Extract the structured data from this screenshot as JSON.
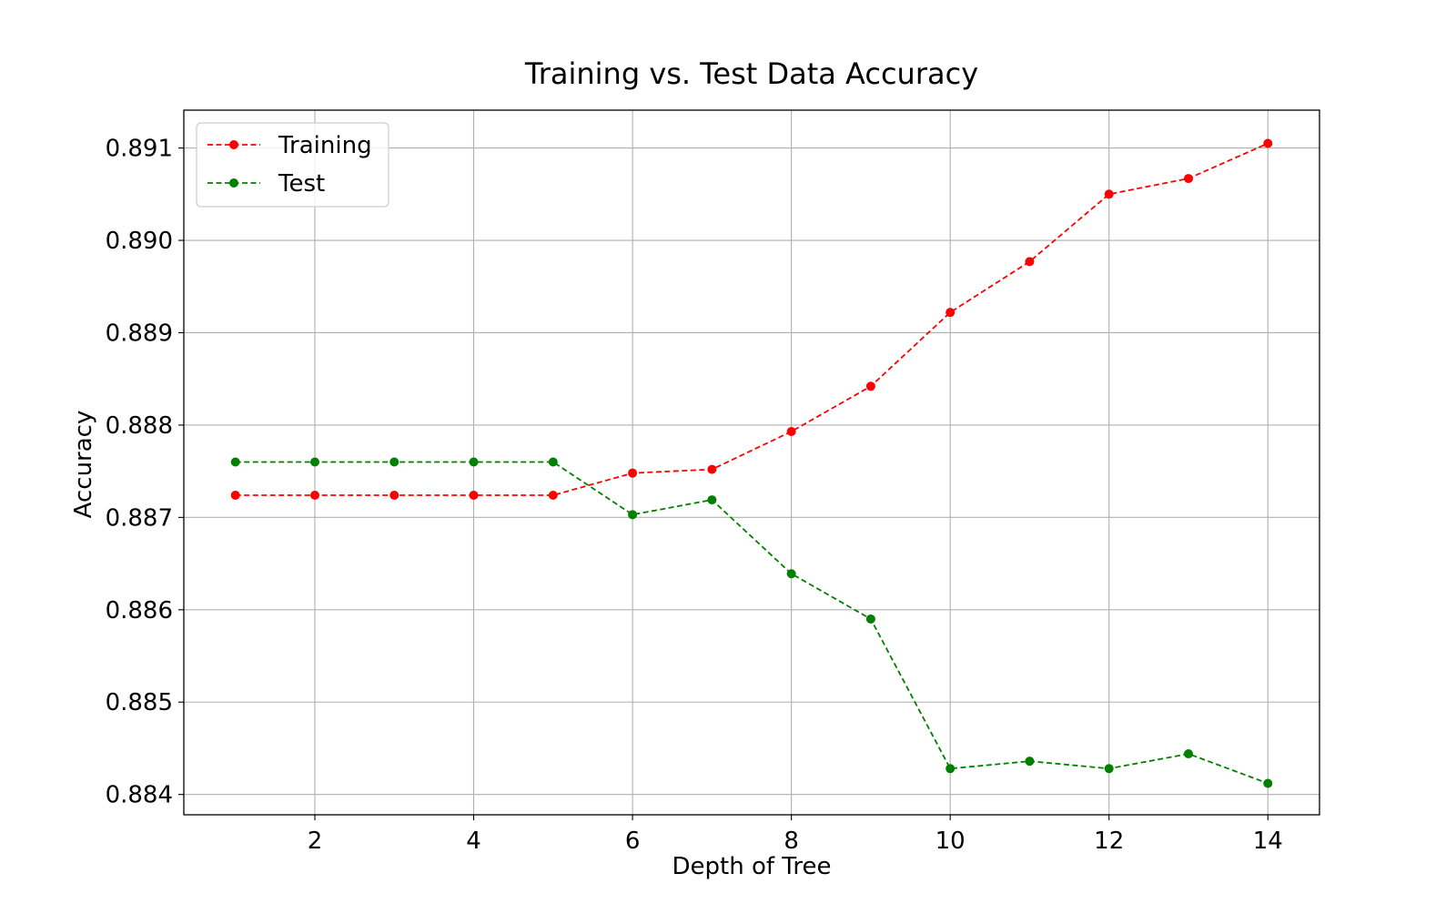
{
  "chart_data": {
    "type": "line",
    "title": "Training vs. Test Data Accuracy",
    "xlabel": "Depth of Tree",
    "ylabel": "Accuracy",
    "x": [
      1,
      2,
      3,
      4,
      5,
      6,
      7,
      8,
      9,
      10,
      11,
      12,
      13,
      14
    ],
    "xlim": [
      0.35,
      14.65
    ],
    "ylim": [
      0.88378,
      0.89141
    ],
    "xticks": [
      2,
      4,
      6,
      8,
      10,
      12,
      14
    ],
    "xtick_labels": [
      "2",
      "4",
      "6",
      "8",
      "10",
      "12",
      "14"
    ],
    "yticks": [
      0.884,
      0.885,
      0.886,
      0.887,
      0.888,
      0.889,
      0.89,
      0.891
    ],
    "ytick_labels": [
      "0.884",
      "0.885",
      "0.886",
      "0.887",
      "0.888",
      "0.889",
      "0.890",
      "0.891"
    ],
    "grid": true,
    "legend_position": "top-left",
    "series": [
      {
        "name": "Training",
        "color": "#ff0000",
        "line_style": "dashed",
        "marker": "circle",
        "values": [
          0.88724,
          0.88724,
          0.88724,
          0.88724,
          0.88724,
          0.88748,
          0.88752,
          0.88793,
          0.88842,
          0.88922,
          0.88977,
          0.8905,
          0.89067,
          0.89105
        ]
      },
      {
        "name": "Test",
        "color": "#008000",
        "line_style": "dashed",
        "marker": "circle",
        "values": [
          0.8876,
          0.8876,
          0.8876,
          0.8876,
          0.8876,
          0.88703,
          0.88719,
          0.88639,
          0.8859,
          0.88428,
          0.88436,
          0.88428,
          0.88444,
          0.88412
        ]
      }
    ]
  }
}
